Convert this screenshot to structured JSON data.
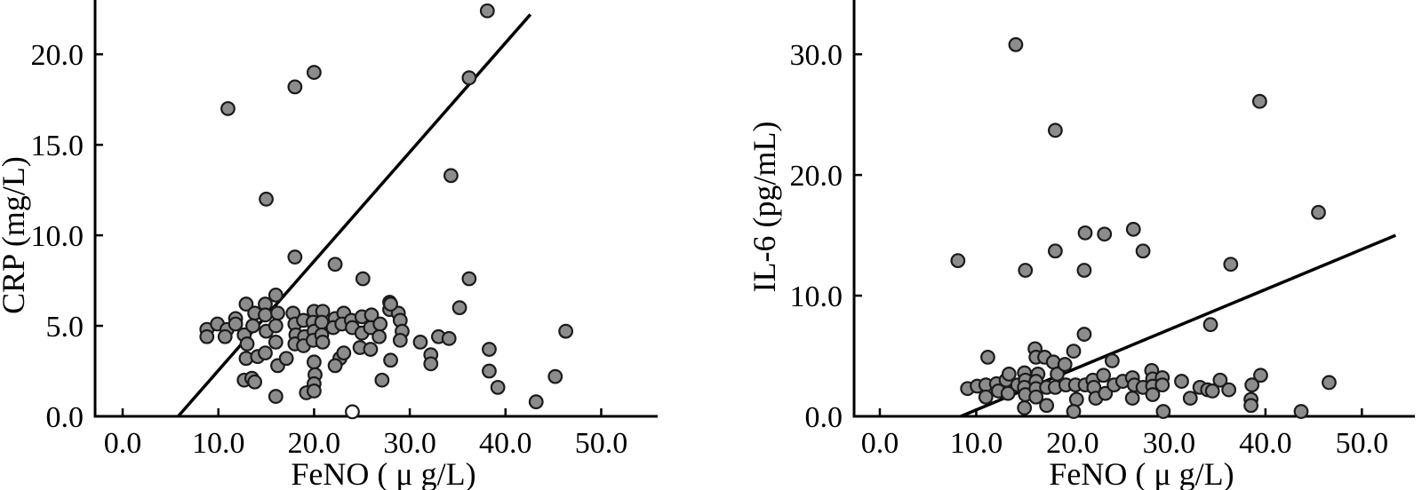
{
  "figure": {
    "background": "#ffffff",
    "description": "Two scatter plots of inflammatory markers versus FeNO with linear regression lines"
  },
  "chart_data": [
    {
      "type": "scatter",
      "title": "",
      "xlabel": "FeNO ( μ g/L)",
      "ylabel": "CRP (mg/L)",
      "xlim": [
        -2.88,
        55.9
      ],
      "ylim": [
        0,
        23.0
      ],
      "x_ticks": [
        0,
        10,
        20,
        30,
        40,
        50
      ],
      "x_tick_labels": [
        "0.0",
        "10.0",
        "20.0",
        "30.0",
        "40.0",
        "50.0"
      ],
      "y_ticks": [
        0,
        5,
        10,
        15,
        20
      ],
      "y_tick_labels": [
        "0.0",
        "5.0",
        "10.0",
        "15.0",
        "20.0"
      ],
      "grid": false,
      "legend": "none",
      "marker": {
        "fill": "#8c8c8c",
        "stroke": "#1a1a1a"
      },
      "line_color": "#000000",
      "trend_line": {
        "x1": 5.8,
        "y1": 0.0,
        "x2": 42.6,
        "y2": 22.2
      },
      "points": [
        [
          11.0,
          17.0
        ],
        [
          15.0,
          12.0
        ],
        [
          18.0,
          18.2
        ],
        [
          20.0,
          19.0
        ],
        [
          38.1,
          22.4
        ],
        [
          36.2,
          18.7
        ],
        [
          34.3,
          13.3
        ],
        [
          18.0,
          8.8
        ],
        [
          22.2,
          8.4
        ],
        [
          25.1,
          7.6
        ],
        [
          36.2,
          7.6
        ],
        [
          8.8,
          4.8
        ],
        [
          8.8,
          4.4
        ],
        [
          9.9,
          5.1
        ],
        [
          10.9,
          4.8
        ],
        [
          10.7,
          4.4
        ],
        [
          11.8,
          5.4
        ],
        [
          11.8,
          5.1
        ],
        [
          12.9,
          6.2
        ],
        [
          12.7,
          4.5
        ],
        [
          13.0,
          4.0
        ],
        [
          12.9,
          3.2
        ],
        [
          12.7,
          2.0
        ],
        [
          13.5,
          2.1
        ],
        [
          13.8,
          5.7
        ],
        [
          13.6,
          5.0
        ],
        [
          13.8,
          1.9
        ],
        [
          14.1,
          3.3
        ],
        [
          14.9,
          6.2
        ],
        [
          14.9,
          5.6
        ],
        [
          15.0,
          4.7
        ],
        [
          14.9,
          3.5
        ],
        [
          16.0,
          6.7
        ],
        [
          16.2,
          5.7
        ],
        [
          16.0,
          5.0
        ],
        [
          16.0,
          4.1
        ],
        [
          16.2,
          2.8
        ],
        [
          16.0,
          1.1
        ],
        [
          17.1,
          3.2
        ],
        [
          17.8,
          5.7
        ],
        [
          18.0,
          5.1
        ],
        [
          18.1,
          4.5
        ],
        [
          18.0,
          4.0
        ],
        [
          18.9,
          5.3
        ],
        [
          19.0,
          4.4
        ],
        [
          18.9,
          3.9
        ],
        [
          19.2,
          1.3
        ],
        [
          20.0,
          5.8
        ],
        [
          19.9,
          5.2
        ],
        [
          20.0,
          4.7
        ],
        [
          19.9,
          4.2
        ],
        [
          20.0,
          3.0
        ],
        [
          20.1,
          2.3
        ],
        [
          20.0,
          1.8
        ],
        [
          20.0,
          1.4
        ],
        [
          20.9,
          5.8
        ],
        [
          20.8,
          5.2
        ],
        [
          20.8,
          4.5
        ],
        [
          20.9,
          4.1
        ],
        [
          22.2,
          5.4
        ],
        [
          22.0,
          4.9
        ],
        [
          22.7,
          3.2
        ],
        [
          22.2,
          2.8
        ],
        [
          23.1,
          3.5
        ],
        [
          23.1,
          5.7
        ],
        [
          22.9,
          5.1
        ],
        [
          23.9,
          5.3
        ],
        [
          24.0,
          4.9
        ],
        [
          25.0,
          5.5
        ],
        [
          25.0,
          4.6
        ],
        [
          24.8,
          3.8
        ],
        [
          25.9,
          3.7
        ],
        [
          26.0,
          5.6
        ],
        [
          25.9,
          4.9
        ],
        [
          26.9,
          5.1
        ],
        [
          26.8,
          4.4
        ],
        [
          27.9,
          6.3
        ],
        [
          27.9,
          5.9
        ],
        [
          28.8,
          5.7
        ],
        [
          29.0,
          5.3
        ],
        [
          29.2,
          4.7
        ],
        [
          29.0,
          4.2
        ],
        [
          28.0,
          3.1
        ],
        [
          27.1,
          2.0
        ],
        [
          28.0,
          6.2
        ],
        [
          31.1,
          4.1
        ],
        [
          32.2,
          3.4
        ],
        [
          32.2,
          2.9
        ],
        [
          33.0,
          4.4
        ],
        [
          34.1,
          4.3
        ],
        [
          35.2,
          6.0
        ],
        [
          38.3,
          3.7
        ],
        [
          38.3,
          2.5
        ],
        [
          39.2,
          1.6
        ],
        [
          43.2,
          0.8
        ],
        [
          46.3,
          4.7
        ],
        [
          45.2,
          2.2
        ]
      ],
      "open_points": [
        [
          24.0,
          0.25
        ]
      ]
    },
    {
      "type": "scatter",
      "title": "",
      "xlabel": "FeNO ( μ g/L)",
      "ylabel": "IL-6 (pg/mL)",
      "xlim": [
        -2.67,
        55.5
      ],
      "ylim": [
        0,
        34.5
      ],
      "x_ticks": [
        0,
        10,
        20,
        30,
        40,
        50
      ],
      "x_tick_labels": [
        "0.0",
        "10.0",
        "20.0",
        "30.0",
        "40.0",
        "50.0"
      ],
      "y_ticks": [
        0,
        10,
        20,
        30
      ],
      "y_tick_labels": [
        "0.0",
        "10.0",
        "20.0",
        "30.0"
      ],
      "grid": false,
      "legend": "none",
      "marker": {
        "fill": "#8c8c8c",
        "stroke": "#1a1a1a"
      },
      "line_color": "#000000",
      "trend_line": {
        "x1": 8.4,
        "y1": 0.0,
        "x2": 53.5,
        "y2": 15.0
      },
      "points": [
        [
          14.1,
          30.8
        ],
        [
          18.2,
          23.7
        ],
        [
          39.4,
          26.1
        ],
        [
          45.5,
          16.9
        ],
        [
          8.1,
          12.9
        ],
        [
          15.1,
          12.1
        ],
        [
          18.2,
          13.7
        ],
        [
          21.3,
          15.2
        ],
        [
          23.3,
          15.1
        ],
        [
          26.3,
          15.5
        ],
        [
          27.3,
          13.7
        ],
        [
          21.2,
          12.1
        ],
        [
          36.4,
          12.6
        ],
        [
          34.3,
          7.6
        ],
        [
          21.2,
          6.8
        ],
        [
          9.1,
          2.3
        ],
        [
          10.1,
          2.5
        ],
        [
          11.2,
          4.9
        ],
        [
          11.0,
          2.6
        ],
        [
          11.0,
          1.6
        ],
        [
          12.1,
          2.7
        ],
        [
          12.3,
          2.1
        ],
        [
          13.1,
          3.0
        ],
        [
          13.4,
          3.5
        ],
        [
          13.3,
          1.9
        ],
        [
          14.3,
          2.6
        ],
        [
          15.0,
          3.6
        ],
        [
          15.1,
          3.0
        ],
        [
          15.0,
          2.4
        ],
        [
          15.1,
          1.8
        ],
        [
          15.0,
          0.7
        ],
        [
          16.1,
          5.6
        ],
        [
          16.2,
          4.9
        ],
        [
          16.4,
          3.5
        ],
        [
          16.2,
          2.9
        ],
        [
          16.2,
          2.3
        ],
        [
          16.2,
          1.6
        ],
        [
          17.1,
          4.9
        ],
        [
          17.3,
          2.4
        ],
        [
          17.3,
          0.9
        ],
        [
          18.0,
          4.5
        ],
        [
          18.4,
          3.5
        ],
        [
          18.2,
          2.4
        ],
        [
          19.2,
          4.3
        ],
        [
          19.3,
          2.6
        ],
        [
          20.1,
          5.4
        ],
        [
          20.3,
          2.6
        ],
        [
          20.4,
          1.4
        ],
        [
          20.1,
          0.4
        ],
        [
          21.3,
          2.6
        ],
        [
          22.1,
          3.0
        ],
        [
          22.2,
          2.4
        ],
        [
          22.4,
          1.5
        ],
        [
          23.2,
          3.4
        ],
        [
          23.4,
          1.9
        ],
        [
          24.1,
          4.6
        ],
        [
          24.3,
          2.6
        ],
        [
          25.2,
          2.9
        ],
        [
          26.2,
          3.2
        ],
        [
          26.4,
          2.6
        ],
        [
          26.2,
          1.5
        ],
        [
          27.3,
          2.4
        ],
        [
          28.2,
          3.8
        ],
        [
          28.3,
          3.1
        ],
        [
          28.3,
          2.5
        ],
        [
          28.3,
          1.8
        ],
        [
          29.3,
          3.2
        ],
        [
          29.3,
          2.6
        ],
        [
          29.4,
          0.4
        ],
        [
          31.3,
          2.9
        ],
        [
          32.2,
          1.5
        ],
        [
          33.2,
          2.4
        ],
        [
          34.0,
          2.2
        ],
        [
          34.5,
          2.1
        ],
        [
          35.3,
          3.0
        ],
        [
          36.2,
          2.2
        ],
        [
          38.5,
          1.4
        ],
        [
          38.5,
          0.9
        ],
        [
          38.6,
          2.6
        ],
        [
          39.5,
          3.4
        ],
        [
          43.7,
          0.4
        ],
        [
          46.6,
          2.8
        ]
      ],
      "open_points": []
    }
  ]
}
